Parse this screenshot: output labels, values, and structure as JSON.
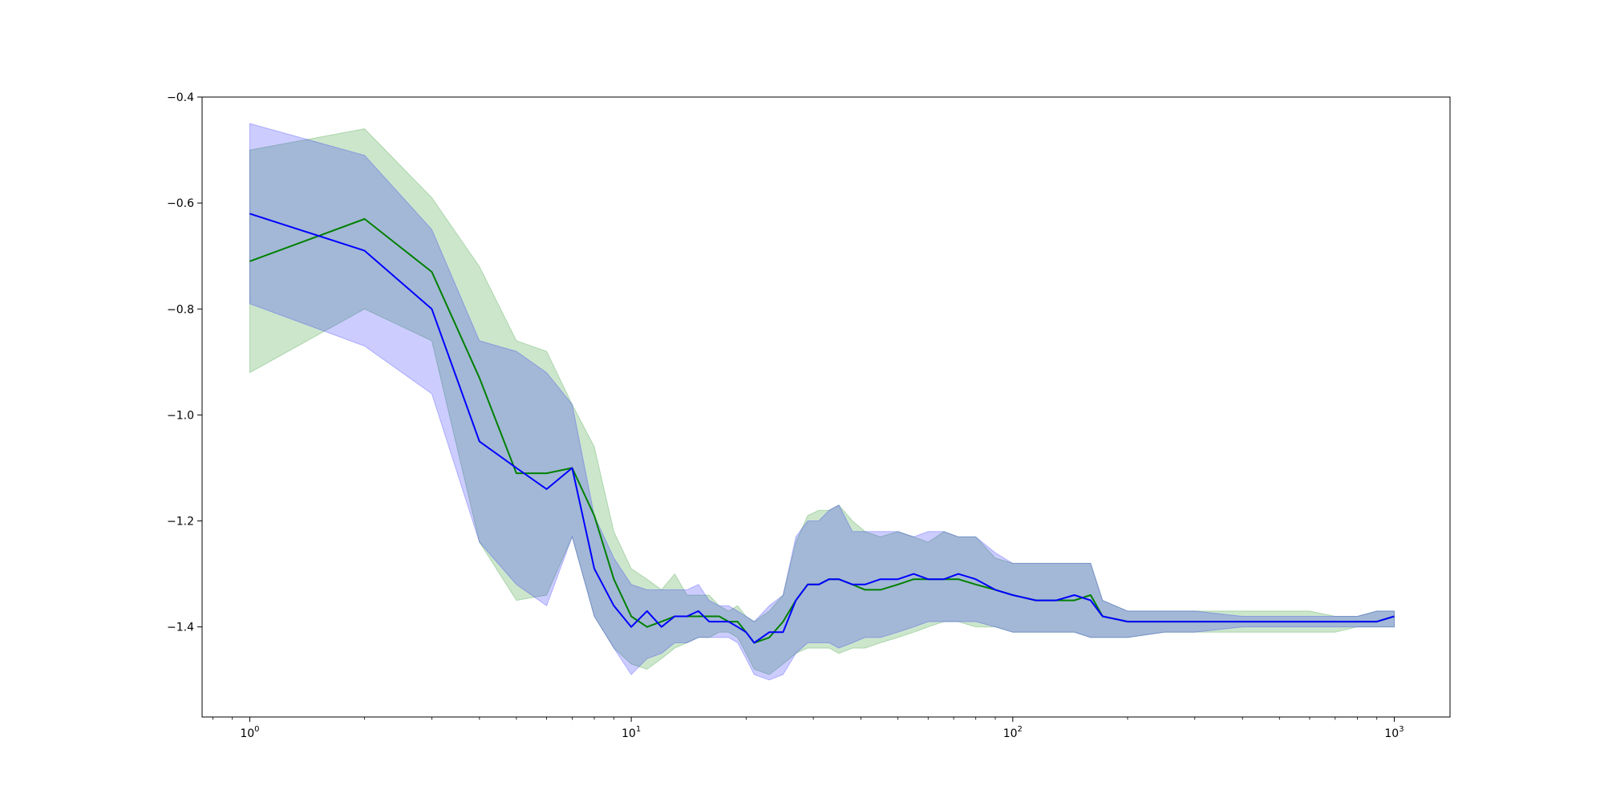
{
  "chart_data": {
    "type": "line",
    "xscale": "log",
    "xlim": [
      0.75,
      1400
    ],
    "ylim": [
      -1.57,
      -0.4
    ],
    "yticks": [
      {
        "value": -1.4,
        "label": "−1.4"
      },
      {
        "value": -1.2,
        "label": "−1.2"
      },
      {
        "value": -1.0,
        "label": "−1.0"
      },
      {
        "value": -0.8,
        "label": "−0.8"
      },
      {
        "value": -0.6,
        "label": "−0.6"
      },
      {
        "value": -0.4,
        "label": "−0.4"
      }
    ],
    "xticks_major": [
      {
        "value": 1,
        "base": "10",
        "exp": "0"
      },
      {
        "value": 10,
        "base": "10",
        "exp": "1"
      },
      {
        "value": 100,
        "base": "10",
        "exp": "2"
      },
      {
        "value": 1000,
        "base": "10",
        "exp": "3"
      }
    ],
    "grid": false,
    "series": [
      {
        "color": "#008000",
        "band_color": "#008000",
        "band_alpha": 0.2,
        "points": [
          [
            1,
            -0.71,
            -0.92,
            -0.5
          ],
          [
            2,
            -0.63,
            -0.8,
            -0.46
          ],
          [
            3,
            -0.73,
            -0.86,
            -0.59
          ],
          [
            4,
            -0.93,
            -1.24,
            -0.72
          ],
          [
            5,
            -1.11,
            -1.35,
            -0.86
          ],
          [
            6,
            -1.11,
            -1.34,
            -0.88
          ],
          [
            7,
            -1.1,
            -1.23,
            -0.98
          ],
          [
            8,
            -1.19,
            -1.38,
            -1.06
          ],
          [
            9,
            -1.31,
            -1.44,
            -1.22
          ],
          [
            10,
            -1.38,
            -1.47,
            -1.29
          ],
          [
            11,
            -1.4,
            -1.48,
            -1.31
          ],
          [
            12,
            -1.39,
            -1.46,
            -1.33
          ],
          [
            13,
            -1.38,
            -1.44,
            -1.3
          ],
          [
            14,
            -1.38,
            -1.43,
            -1.34
          ],
          [
            15,
            -1.38,
            -1.42,
            -1.34
          ],
          [
            16,
            -1.38,
            -1.42,
            -1.34
          ],
          [
            17,
            -1.38,
            -1.41,
            -1.36
          ],
          [
            18,
            -1.39,
            -1.41,
            -1.37
          ],
          [
            19,
            -1.39,
            -1.42,
            -1.36
          ],
          [
            20,
            -1.41,
            -1.45,
            -1.38
          ],
          [
            21,
            -1.43,
            -1.48,
            -1.39
          ],
          [
            23,
            -1.42,
            -1.49,
            -1.37
          ],
          [
            25,
            -1.39,
            -1.47,
            -1.34
          ],
          [
            27,
            -1.35,
            -1.45,
            -1.24
          ],
          [
            29,
            -1.32,
            -1.44,
            -1.19
          ],
          [
            31,
            -1.32,
            -1.44,
            -1.18
          ],
          [
            33,
            -1.31,
            -1.44,
            -1.18
          ],
          [
            35,
            -1.31,
            -1.45,
            -1.17
          ],
          [
            38,
            -1.32,
            -1.44,
            -1.2
          ],
          [
            41,
            -1.33,
            -1.44,
            -1.22
          ],
          [
            45,
            -1.33,
            -1.43,
            -1.23
          ],
          [
            50,
            -1.32,
            -1.42,
            -1.22
          ],
          [
            55,
            -1.31,
            -1.41,
            -1.23
          ],
          [
            60,
            -1.31,
            -1.4,
            -1.24
          ],
          [
            66,
            -1.31,
            -1.39,
            -1.22
          ],
          [
            72,
            -1.31,
            -1.39,
            -1.23
          ],
          [
            80,
            -1.32,
            -1.4,
            -1.23
          ],
          [
            90,
            -1.33,
            -1.4,
            -1.27
          ],
          [
            100,
            -1.34,
            -1.41,
            -1.28
          ],
          [
            115,
            -1.35,
            -1.41,
            -1.28
          ],
          [
            130,
            -1.35,
            -1.41,
            -1.28
          ],
          [
            145,
            -1.35,
            -1.41,
            -1.28
          ],
          [
            160,
            -1.34,
            -1.42,
            -1.28
          ],
          [
            172,
            -1.38,
            -1.42,
            -1.35
          ],
          [
            200,
            -1.39,
            -1.42,
            -1.37
          ],
          [
            250,
            -1.39,
            -1.41,
            -1.37
          ],
          [
            300,
            -1.39,
            -1.41,
            -1.37
          ],
          [
            400,
            -1.39,
            -1.41,
            -1.37
          ],
          [
            450,
            -1.39,
            -1.41,
            -1.37
          ],
          [
            500,
            -1.39,
            -1.41,
            -1.37
          ],
          [
            600,
            -1.39,
            -1.41,
            -1.37
          ],
          [
            700,
            -1.39,
            -1.41,
            -1.38
          ],
          [
            800,
            -1.39,
            -1.4,
            -1.38
          ],
          [
            900,
            -1.39,
            -1.4,
            -1.37
          ],
          [
            1000,
            -1.38,
            -1.4,
            -1.37
          ]
        ]
      },
      {
        "color": "#0000ff",
        "band_color": "#0000ff",
        "band_alpha": 0.2,
        "points": [
          [
            1,
            -0.62,
            -0.79,
            -0.45
          ],
          [
            2,
            -0.69,
            -0.87,
            -0.51
          ],
          [
            3,
            -0.8,
            -0.96,
            -0.65
          ],
          [
            4,
            -1.05,
            -1.24,
            -0.86
          ],
          [
            5,
            -1.1,
            -1.32,
            -0.88
          ],
          [
            6,
            -1.14,
            -1.36,
            -0.92
          ],
          [
            7,
            -1.1,
            -1.23,
            -0.98
          ],
          [
            8,
            -1.29,
            -1.38,
            -1.19
          ],
          [
            9,
            -1.36,
            -1.44,
            -1.27
          ],
          [
            10,
            -1.4,
            -1.49,
            -1.32
          ],
          [
            11,
            -1.37,
            -1.46,
            -1.33
          ],
          [
            12,
            -1.4,
            -1.45,
            -1.33
          ],
          [
            13,
            -1.38,
            -1.43,
            -1.33
          ],
          [
            14,
            -1.38,
            -1.43,
            -1.33
          ],
          [
            15,
            -1.37,
            -1.42,
            -1.32
          ],
          [
            16,
            -1.39,
            -1.42,
            -1.35
          ],
          [
            17,
            -1.39,
            -1.42,
            -1.36
          ],
          [
            18,
            -1.39,
            -1.42,
            -1.36
          ],
          [
            19,
            -1.4,
            -1.43,
            -1.37
          ],
          [
            20,
            -1.41,
            -1.46,
            -1.38
          ],
          [
            21,
            -1.43,
            -1.49,
            -1.39
          ],
          [
            23,
            -1.41,
            -1.5,
            -1.36
          ],
          [
            25,
            -1.41,
            -1.49,
            -1.34
          ],
          [
            27,
            -1.35,
            -1.45,
            -1.23
          ],
          [
            29,
            -1.32,
            -1.43,
            -1.2
          ],
          [
            31,
            -1.32,
            -1.43,
            -1.2
          ],
          [
            33,
            -1.31,
            -1.43,
            -1.18
          ],
          [
            35,
            -1.31,
            -1.44,
            -1.17
          ],
          [
            38,
            -1.32,
            -1.43,
            -1.22
          ],
          [
            41,
            -1.32,
            -1.42,
            -1.22
          ],
          [
            45,
            -1.31,
            -1.42,
            -1.22
          ],
          [
            50,
            -1.31,
            -1.41,
            -1.22
          ],
          [
            55,
            -1.3,
            -1.4,
            -1.23
          ],
          [
            60,
            -1.31,
            -1.39,
            -1.22
          ],
          [
            66,
            -1.31,
            -1.39,
            -1.22
          ],
          [
            72,
            -1.3,
            -1.39,
            -1.23
          ],
          [
            80,
            -1.31,
            -1.39,
            -1.23
          ],
          [
            90,
            -1.33,
            -1.4,
            -1.26
          ],
          [
            100,
            -1.34,
            -1.41,
            -1.28
          ],
          [
            115,
            -1.35,
            -1.41,
            -1.28
          ],
          [
            130,
            -1.35,
            -1.41,
            -1.28
          ],
          [
            145,
            -1.34,
            -1.41,
            -1.28
          ],
          [
            160,
            -1.35,
            -1.42,
            -1.28
          ],
          [
            172,
            -1.38,
            -1.42,
            -1.35
          ],
          [
            200,
            -1.39,
            -1.42,
            -1.37
          ],
          [
            250,
            -1.39,
            -1.41,
            -1.37
          ],
          [
            300,
            -1.39,
            -1.41,
            -1.37
          ],
          [
            400,
            -1.39,
            -1.4,
            -1.38
          ],
          [
            450,
            -1.39,
            -1.4,
            -1.38
          ],
          [
            500,
            -1.39,
            -1.4,
            -1.38
          ],
          [
            600,
            -1.39,
            -1.4,
            -1.38
          ],
          [
            700,
            -1.39,
            -1.4,
            -1.38
          ],
          [
            800,
            -1.39,
            -1.4,
            -1.38
          ],
          [
            900,
            -1.39,
            -1.4,
            -1.37
          ],
          [
            1000,
            -1.38,
            -1.4,
            -1.37
          ]
        ]
      }
    ]
  }
}
